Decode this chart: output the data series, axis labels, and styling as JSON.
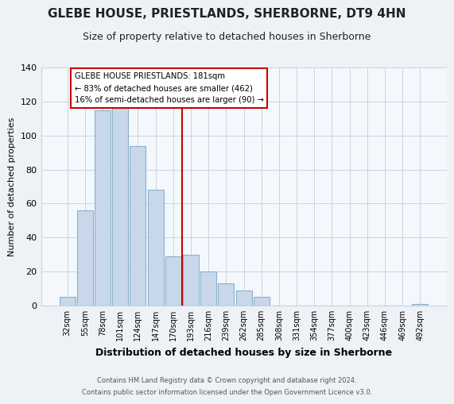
{
  "title": "GLEBE HOUSE, PRIESTLANDS, SHERBORNE, DT9 4HN",
  "subtitle": "Size of property relative to detached houses in Sherborne",
  "xlabel": "Distribution of detached houses by size in Sherborne",
  "ylabel": "Number of detached properties",
  "categories": [
    "32sqm",
    "55sqm",
    "78sqm",
    "101sqm",
    "124sqm",
    "147sqm",
    "170sqm",
    "193sqm",
    "216sqm",
    "239sqm",
    "262sqm",
    "285sqm",
    "308sqm",
    "331sqm",
    "354sqm",
    "377sqm",
    "400sqm",
    "423sqm",
    "446sqm",
    "469sqm",
    "492sqm"
  ],
  "values": [
    5,
    56,
    115,
    133,
    94,
    68,
    29,
    30,
    20,
    13,
    9,
    5,
    0,
    0,
    0,
    0,
    0,
    0,
    0,
    0,
    1
  ],
  "bar_color": "#c8d8ea",
  "bar_edge_color": "#8ab0cc",
  "vline_color": "#cc0000",
  "annotation_title": "GLEBE HOUSE PRIESTLANDS: 181sqm",
  "annotation_line1": "← 83% of detached houses are smaller (462)",
  "annotation_line2": "16% of semi-detached houses are larger (90) →",
  "annotation_box_color": "#ffffff",
  "annotation_box_edge": "#cc0000",
  "ylim": [
    0,
    140
  ],
  "yticks": [
    0,
    20,
    40,
    60,
    80,
    100,
    120,
    140
  ],
  "vline_pos": 6.5,
  "footer1": "Contains HM Land Registry data © Crown copyright and database right 2024.",
  "footer2": "Contains public sector information licensed under the Open Government Licence v3.0.",
  "bg_color": "#eef2f7",
  "plot_bg_color": "#f4f8fc",
  "grid_color": "#c8d4e0"
}
